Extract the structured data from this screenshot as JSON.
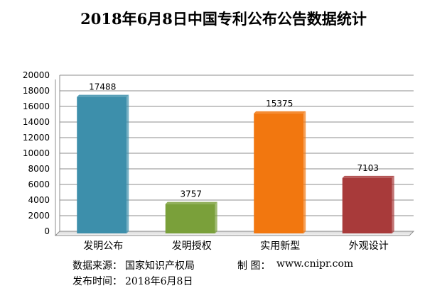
{
  "chart_data": {
    "type": "bar",
    "title": "2018年6月8日中国专利公布公告数据统计",
    "categories": [
      "发明公布",
      "发明授权",
      "实用新型",
      "外观设计"
    ],
    "values": [
      17488,
      3757,
      15375,
      7103
    ],
    "data_labels": [
      "17488",
      "3757",
      "15375",
      "7103"
    ],
    "colors": [
      "#3d8fab",
      "#7aa03a",
      "#f2770f",
      "#a83a3a"
    ],
    "ylim": [
      0,
      20000
    ],
    "y_ticks": [
      0,
      2000,
      4000,
      6000,
      8000,
      10000,
      12000,
      14000,
      16000,
      18000,
      20000
    ],
    "y_tick_labels": [
      "0",
      "2000",
      "4000",
      "6000",
      "8000",
      "10000",
      "12000",
      "14000",
      "16000",
      "18000",
      "20000"
    ],
    "grid": true,
    "xlabel": "",
    "ylabel": ""
  },
  "footer": {
    "source_label": "数据来源：",
    "source_value": "国家知识产权局",
    "producer_label": "制  图：",
    "producer_value": "www.cnipr.com",
    "date_label": "发布时间：",
    "date_value": "2018年6月8日"
  }
}
